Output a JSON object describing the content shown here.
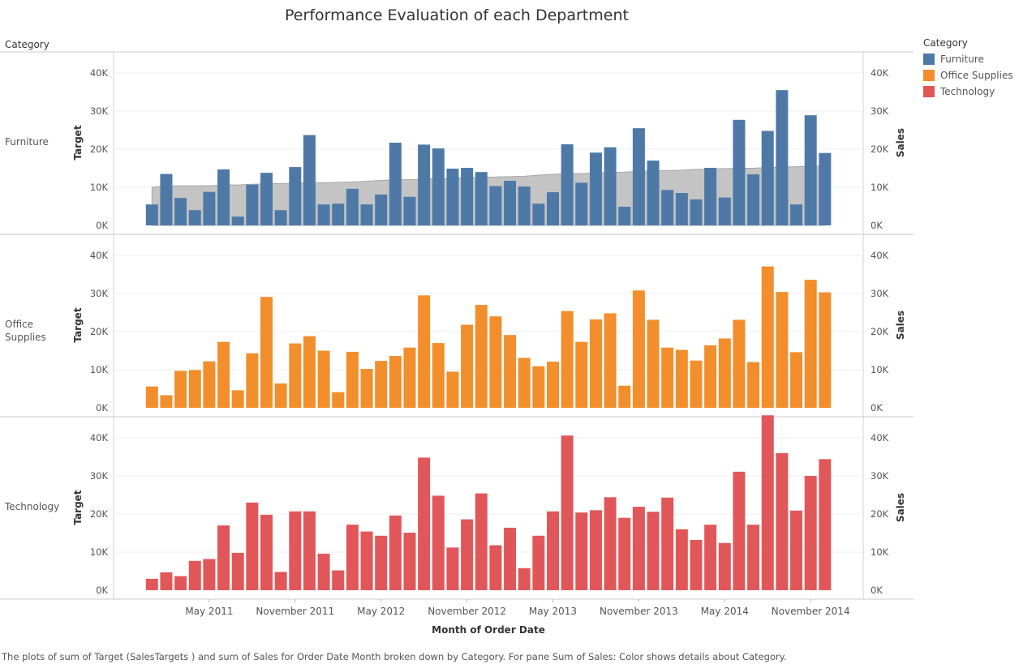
{
  "title": "Performance Evaluation of each Department",
  "row_header": "Category",
  "legend": {
    "title": "Category",
    "items": [
      {
        "label": "Furniture",
        "color": "#4e79a7"
      },
      {
        "label": "Office Supplies",
        "color": "#f28e2b"
      },
      {
        "label": "Technology",
        "color": "#e15759"
      }
    ]
  },
  "caption": "The plots of sum of Target (SalesTargets ) and sum of Sales for Order Date Month broken down by Category.  For pane Sum of Sales:  Color shows details about Category.",
  "chart_data": {
    "type": "bar",
    "description_free": true,
    "x_title": "Month of Order Date",
    "x_tick_labels": [
      "May 2011",
      "November 2011",
      "May 2012",
      "November 2012",
      "May 2013",
      "November 2013",
      "May 2014",
      "November 2014"
    ],
    "x_tick_months": [
      "2011-05",
      "2011-11",
      "2012-05",
      "2012-11",
      "2013-05",
      "2013-11",
      "2014-05",
      "2014-11"
    ],
    "months": [
      "2011-01",
      "2011-02",
      "2011-03",
      "2011-04",
      "2011-05",
      "2011-06",
      "2011-07",
      "2011-08",
      "2011-09",
      "2011-10",
      "2011-11",
      "2011-12",
      "2012-01",
      "2012-02",
      "2012-03",
      "2012-04",
      "2012-05",
      "2012-06",
      "2012-07",
      "2012-08",
      "2012-09",
      "2012-10",
      "2012-11",
      "2012-12",
      "2013-01",
      "2013-02",
      "2013-03",
      "2013-04",
      "2013-05",
      "2013-06",
      "2013-07",
      "2013-08",
      "2013-09",
      "2013-10",
      "2013-11",
      "2013-12",
      "2014-01",
      "2014-02",
      "2014-03",
      "2014-04",
      "2014-05",
      "2014-06",
      "2014-07",
      "2014-08",
      "2014-09",
      "2014-10",
      "2014-11",
      "2014-12"
    ],
    "y_left_label": "Target",
    "y_right_label": "Sales",
    "y_ticks": [
      "0K",
      "10K",
      "20K",
      "30K",
      "40K"
    ],
    "y_tick_values": [
      0,
      10000,
      20000,
      30000,
      40000
    ],
    "grid": true,
    "panes": [
      {
        "category": "Furniture",
        "color": "#4e79a7",
        "ylim": [
          0,
          47500
        ],
        "sales": [
          5500,
          13500,
          7200,
          4000,
          8800,
          14700,
          2300,
          10700,
          13800,
          4000,
          15300,
          23700,
          5500,
          5700,
          9600,
          5500,
          8100,
          21700,
          7500,
          21200,
          20200,
          14900,
          15100,
          14000,
          10300,
          11700,
          10200,
          5700,
          8700,
          21300,
          11200,
          19100,
          20500,
          4900,
          25500,
          17000,
          9300,
          8500,
          6800,
          15100,
          7300,
          27700,
          13400,
          24800,
          35500,
          5500,
          28900,
          19000
        ],
        "target": [
          10000,
          10400,
          10400,
          10400,
          10400,
          10600,
          10600,
          10800,
          10900,
          11000,
          11000,
          11200,
          11200,
          11300,
          11400,
          11600,
          11800,
          12000,
          12000,
          12200,
          12300,
          12400,
          12500,
          12600,
          12700,
          12800,
          12900,
          13200,
          13400,
          13600,
          13600,
          13800,
          13900,
          14000,
          14200,
          14300,
          14400,
          14500,
          14700,
          14800,
          14900,
          15000,
          15000,
          15200,
          15300,
          15400,
          15500,
          15600
        ]
      },
      {
        "category": "Office Supplies",
        "color": "#f28e2b",
        "ylim": [
          0,
          47500
        ],
        "sales": [
          5600,
          3300,
          9700,
          9900,
          12200,
          17300,
          4600,
          14300,
          29100,
          6400,
          16900,
          18800,
          15000,
          4100,
          14700,
          10200,
          12300,
          13600,
          15800,
          29500,
          17000,
          9500,
          21800,
          27000,
          24000,
          19100,
          13100,
          10900,
          12100,
          25400,
          17300,
          23200,
          24800,
          5800,
          30800,
          23100,
          15800,
          15200,
          12400,
          16400,
          18200,
          23100,
          12000,
          37100,
          30400,
          14600,
          33600,
          30300
        ]
      },
      {
        "category": "Technology",
        "color": "#e15759",
        "ylim": [
          0,
          47500
        ],
        "sales": [
          3000,
          4700,
          3700,
          7700,
          8200,
          17000,
          9800,
          23000,
          19800,
          4800,
          20700,
          20700,
          9600,
          5200,
          17200,
          15400,
          14300,
          19600,
          15100,
          34800,
          24800,
          11200,
          18600,
          25400,
          11800,
          16400,
          5800,
          14300,
          20700,
          40600,
          20400,
          21000,
          24400,
          19000,
          21900,
          20600,
          24300,
          16000,
          13200,
          17200,
          12400,
          31100,
          17200,
          45900,
          36000,
          20900,
          30000,
          34400
        ]
      }
    ],
    "targets_note_free": true
  }
}
